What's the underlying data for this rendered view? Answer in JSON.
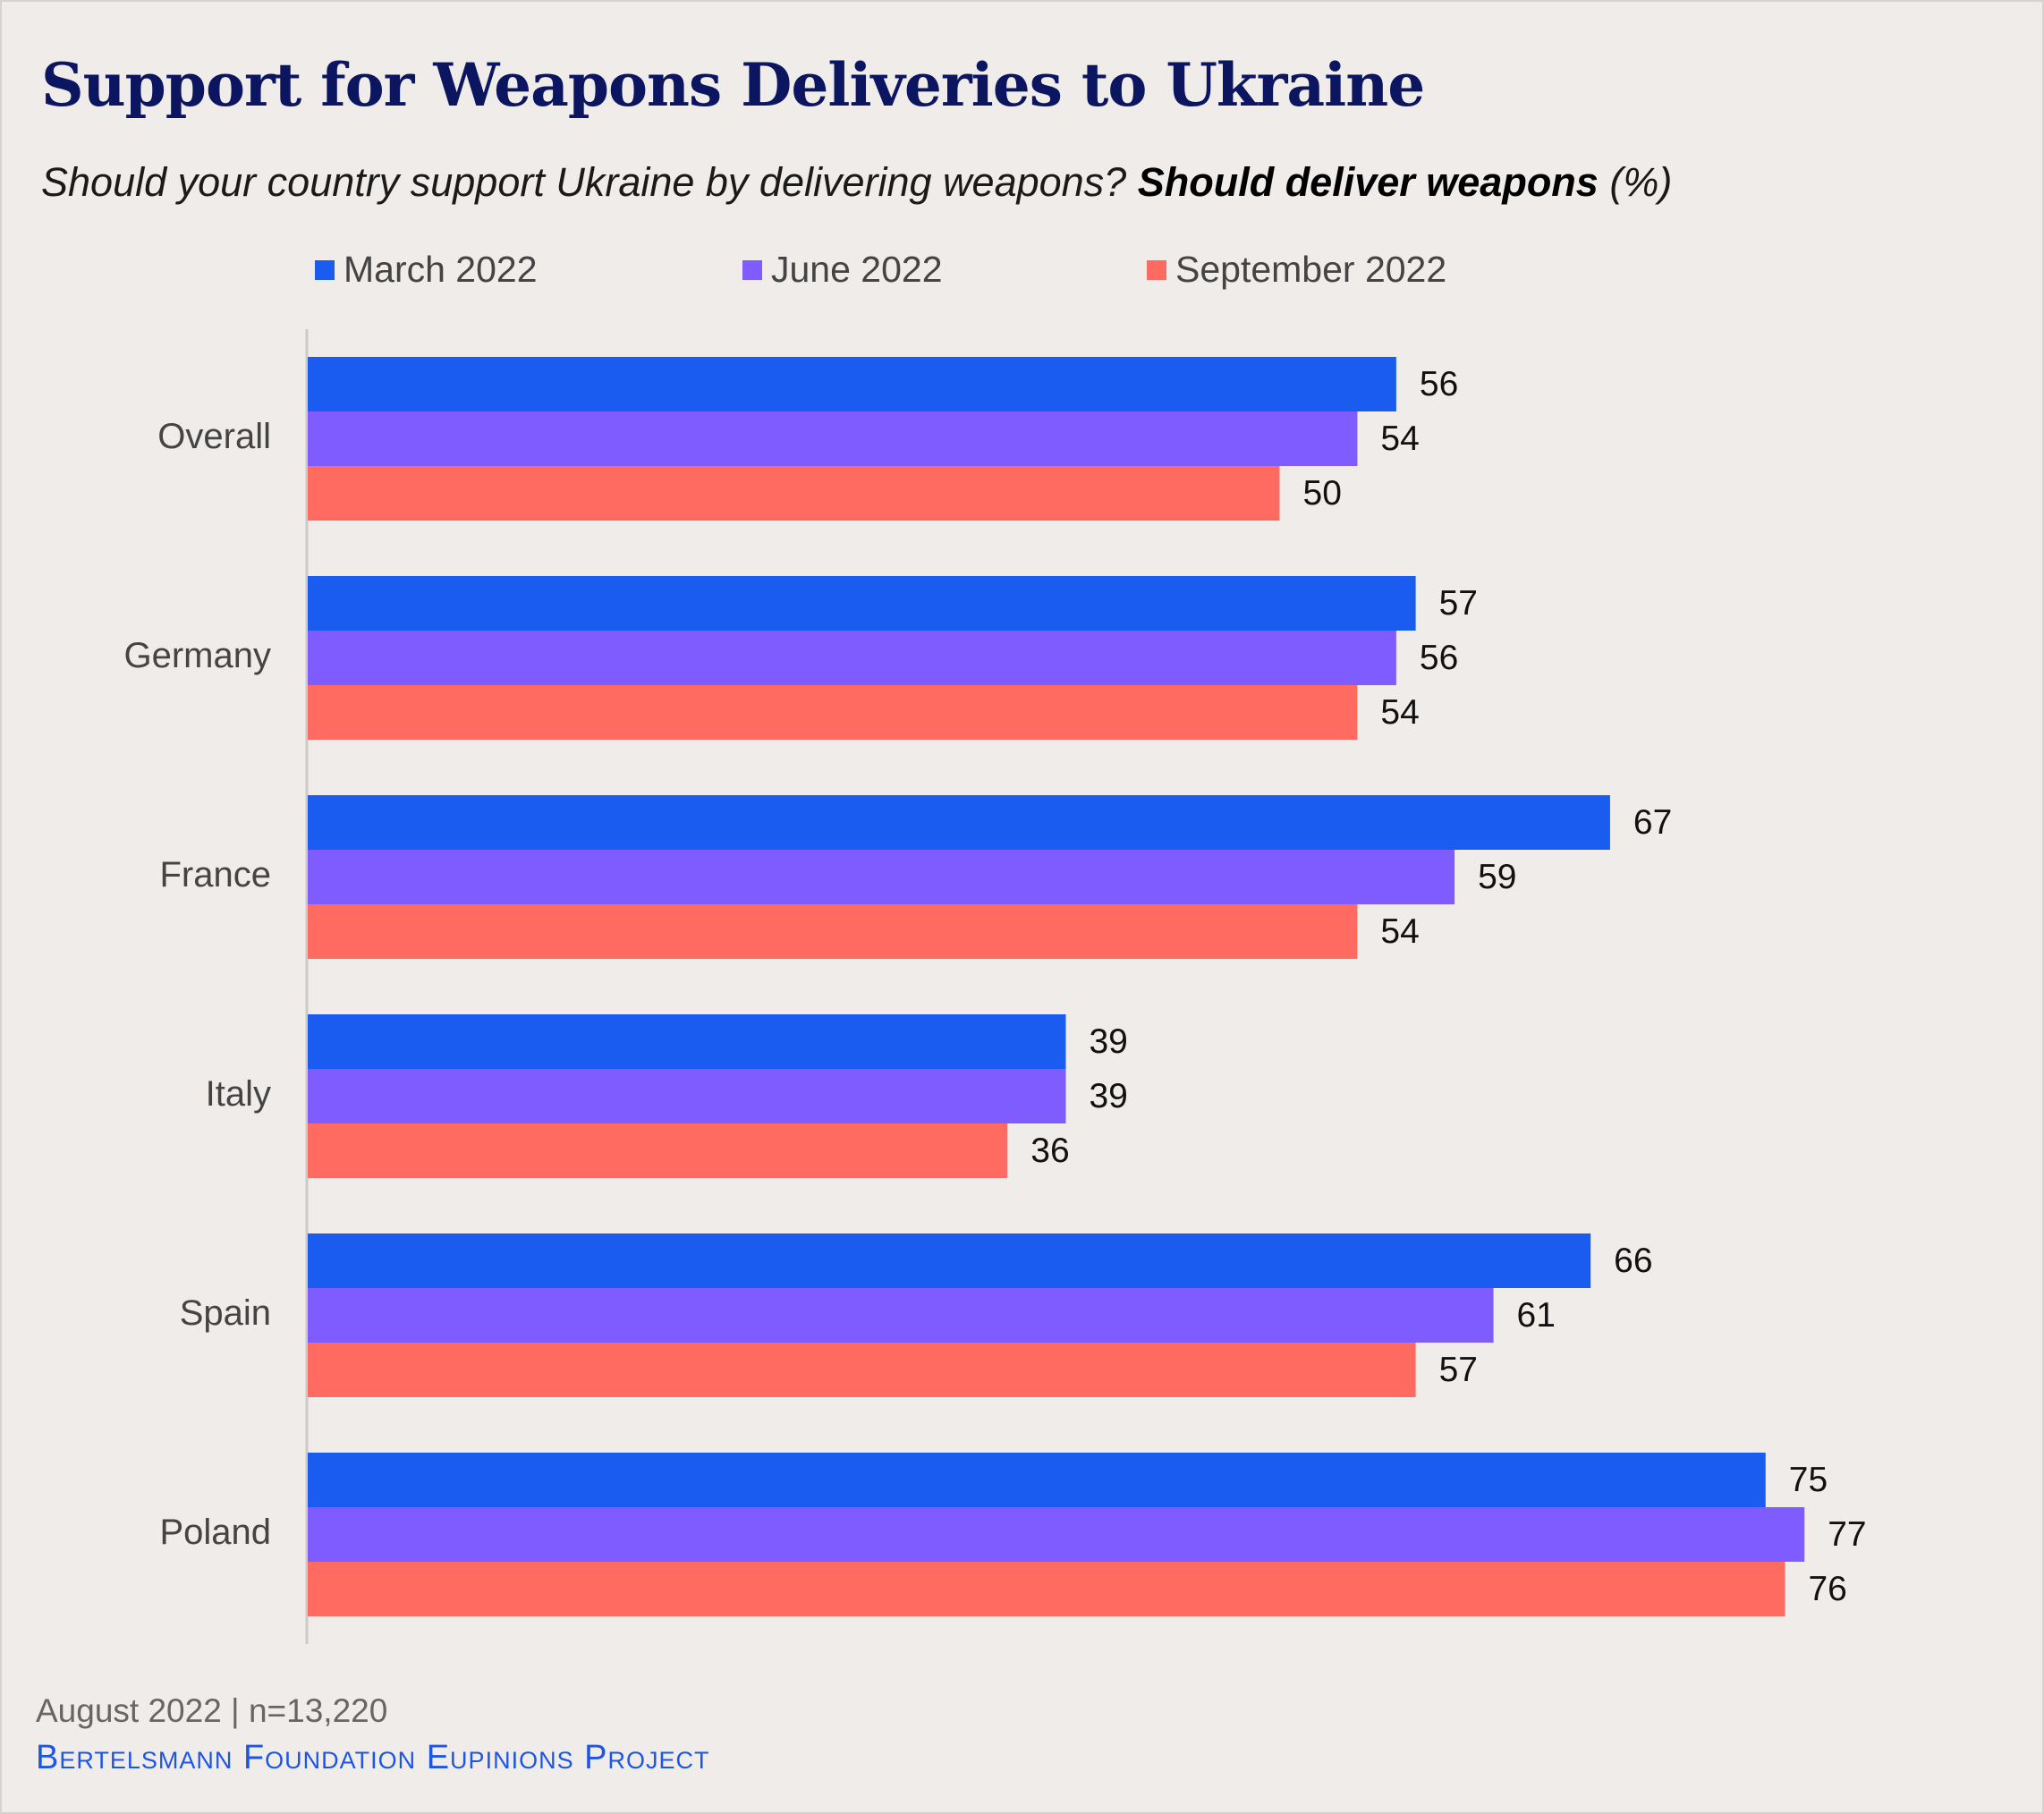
{
  "header": {
    "title": "Support for Weapons Deliveries to Ukraine",
    "subtitle_question": "Should your country support Ukraine by delivering weapons?",
    "subtitle_answer": "Should deliver weapons",
    "subtitle_unit": "(%)"
  },
  "footer": {
    "note": "August 2022 | n=13,220",
    "source": "Bertelsmann Foundation Eupinions Project"
  },
  "colors": {
    "title": "#0c1560",
    "march": "#1a5cf0",
    "june": "#7f5cff",
    "september": "#ff6b61",
    "axis": "#cfcac6",
    "source": "#1d56e6"
  },
  "chart_data": {
    "type": "bar",
    "orientation": "horizontal",
    "title": "Support for Weapons Deliveries to Ukraine",
    "xlabel": "",
    "ylabel": "",
    "categories": [
      "Overall",
      "Germany",
      "France",
      "Italy",
      "Spain",
      "Poland"
    ],
    "series": [
      {
        "name": "March 2022",
        "color": "#1a5cf0",
        "values": [
          56,
          57,
          67,
          39,
          66,
          75
        ]
      },
      {
        "name": "June 2022",
        "color": "#7f5cff",
        "values": [
          54,
          56,
          59,
          39,
          61,
          77
        ]
      },
      {
        "name": "September 2022",
        "color": "#ff6b61",
        "values": [
          50,
          54,
          54,
          36,
          57,
          76
        ]
      }
    ],
    "xlim": [
      0,
      100
    ],
    "grid": false,
    "legend": "top",
    "data_labels": true
  }
}
